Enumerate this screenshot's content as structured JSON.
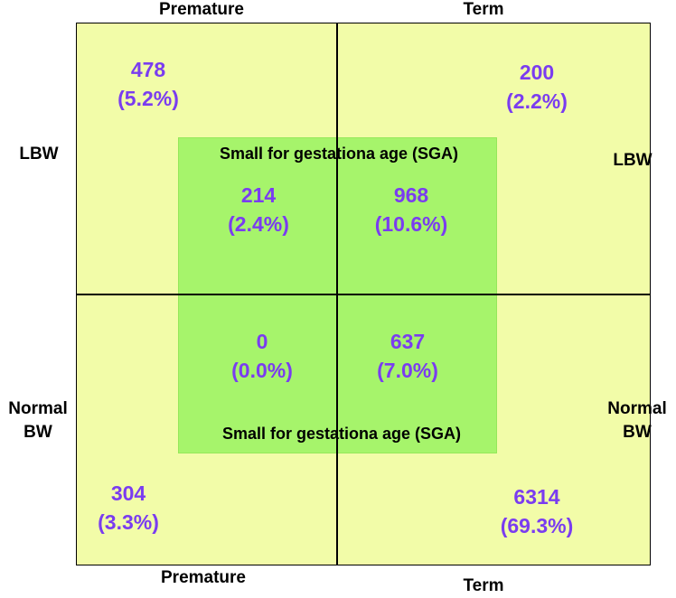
{
  "labels": {
    "top_left": "Premature",
    "top_right": "Term",
    "bottom_left": "Premature",
    "bottom_right": "Term",
    "left_top": "LBW",
    "right_top": "LBW",
    "left_bottom_line1": "Normal",
    "left_bottom_line2": "BW",
    "right_bottom_line1": "Normal",
    "right_bottom_line2": "BW"
  },
  "sga": {
    "top_label": "Small for gestationa age (SGA)",
    "bottom_label": "Small for gestationa age (SGA)"
  },
  "cells": {
    "premature_lbw": {
      "count": "478",
      "pct": "(5.2%)"
    },
    "term_lbw": {
      "count": "200",
      "pct": "(2.2%)"
    },
    "premature_lbw_sga": {
      "count": "214",
      "pct": "(2.4%)"
    },
    "term_lbw_sga": {
      "count": "968",
      "pct": "(10.6%)"
    },
    "premature_normal_sga": {
      "count": "0",
      "pct": "(0.0%)"
    },
    "term_normal_sga": {
      "count": "637",
      "pct": "(7.0%)"
    },
    "premature_normal": {
      "count": "304",
      "pct": "(3.3%)"
    },
    "term_normal": {
      "count": "6314",
      "pct": "(69.3%)"
    }
  },
  "colors": {
    "outer_fill": "#f2fca8",
    "sga_fill": "#a6f46b",
    "value_text": "#7a3cf0"
  }
}
